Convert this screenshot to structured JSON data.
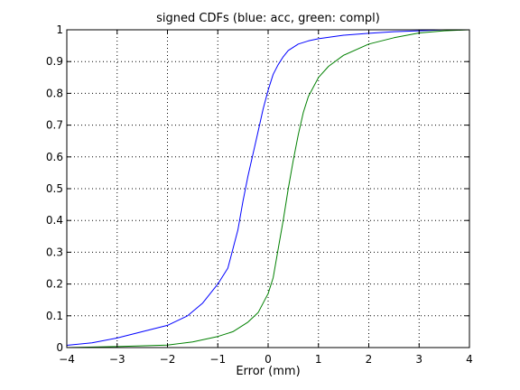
{
  "chart_data": {
    "type": "line",
    "title": "signed CDFs (blue: acc, green: compl)",
    "xlabel": "Error (mm)",
    "ylabel": "",
    "xlim": [
      -4,
      4
    ],
    "ylim": [
      0,
      1
    ],
    "xticks": [
      "−4",
      "−3",
      "−2",
      "−1",
      "0",
      "1",
      "2",
      "3",
      "4"
    ],
    "yticks": [
      "0",
      "0.1",
      "0.2",
      "0.3",
      "0.4",
      "0.5",
      "0.6",
      "0.7",
      "0.8",
      "0.9",
      "1"
    ],
    "grid": true,
    "series": [
      {
        "color": "#0000ff",
        "points": [
          [
            -4.0,
            0.007
          ],
          [
            -3.5,
            0.015
          ],
          [
            -3.0,
            0.03
          ],
          [
            -2.5,
            0.05
          ],
          [
            -2.0,
            0.07
          ],
          [
            -1.6,
            0.1
          ],
          [
            -1.3,
            0.14
          ],
          [
            -1.0,
            0.2
          ],
          [
            -0.8,
            0.25
          ],
          [
            -0.6,
            0.37
          ],
          [
            -0.5,
            0.46
          ],
          [
            -0.4,
            0.54
          ],
          [
            -0.3,
            0.61
          ],
          [
            -0.2,
            0.68
          ],
          [
            -0.1,
            0.75
          ],
          [
            0.0,
            0.81
          ],
          [
            0.1,
            0.86
          ],
          [
            0.2,
            0.89
          ],
          [
            0.3,
            0.915
          ],
          [
            0.4,
            0.935
          ],
          [
            0.6,
            0.955
          ],
          [
            0.8,
            0.965
          ],
          [
            1.0,
            0.972
          ],
          [
            1.5,
            0.983
          ],
          [
            2.0,
            0.989
          ],
          [
            2.5,
            0.994
          ],
          [
            3.0,
            0.997
          ],
          [
            3.5,
            1.0
          ],
          [
            4.0,
            1.0
          ]
        ]
      },
      {
        "color": "#008000",
        "points": [
          [
            -4.0,
            0.0
          ],
          [
            -3.0,
            0.003
          ],
          [
            -2.0,
            0.008
          ],
          [
            -1.5,
            0.018
          ],
          [
            -1.0,
            0.035
          ],
          [
            -0.7,
            0.05
          ],
          [
            -0.4,
            0.08
          ],
          [
            -0.2,
            0.11
          ],
          [
            0.0,
            0.17
          ],
          [
            0.1,
            0.22
          ],
          [
            0.2,
            0.31
          ],
          [
            0.3,
            0.4
          ],
          [
            0.4,
            0.5
          ],
          [
            0.5,
            0.59
          ],
          [
            0.6,
            0.67
          ],
          [
            0.7,
            0.74
          ],
          [
            0.8,
            0.79
          ],
          [
            1.0,
            0.85
          ],
          [
            1.2,
            0.885
          ],
          [
            1.5,
            0.92
          ],
          [
            2.0,
            0.955
          ],
          [
            2.5,
            0.975
          ],
          [
            3.0,
            0.99
          ],
          [
            3.5,
            0.997
          ],
          [
            4.0,
            1.0
          ]
        ]
      }
    ]
  }
}
